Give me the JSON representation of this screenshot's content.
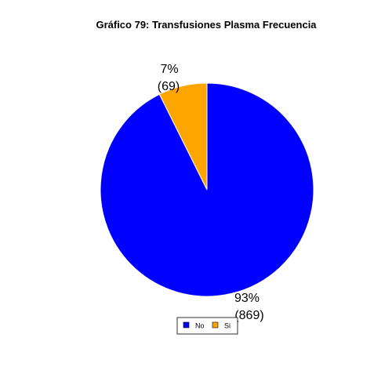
{
  "chart_data": {
    "type": "pie",
    "title": "Gráfico 79: Transfusiones Plasma Frecuencia",
    "categories": [
      "No",
      "Si"
    ],
    "values": [
      869,
      69
    ],
    "percent_labels": [
      "93%",
      "7%"
    ],
    "count_labels": [
      "(869)",
      "(69)"
    ],
    "colors": [
      "#0000ff",
      "#ffa500"
    ],
    "legend": {
      "entries": [
        "No",
        "Si"
      ],
      "placement": "bottom"
    }
  }
}
